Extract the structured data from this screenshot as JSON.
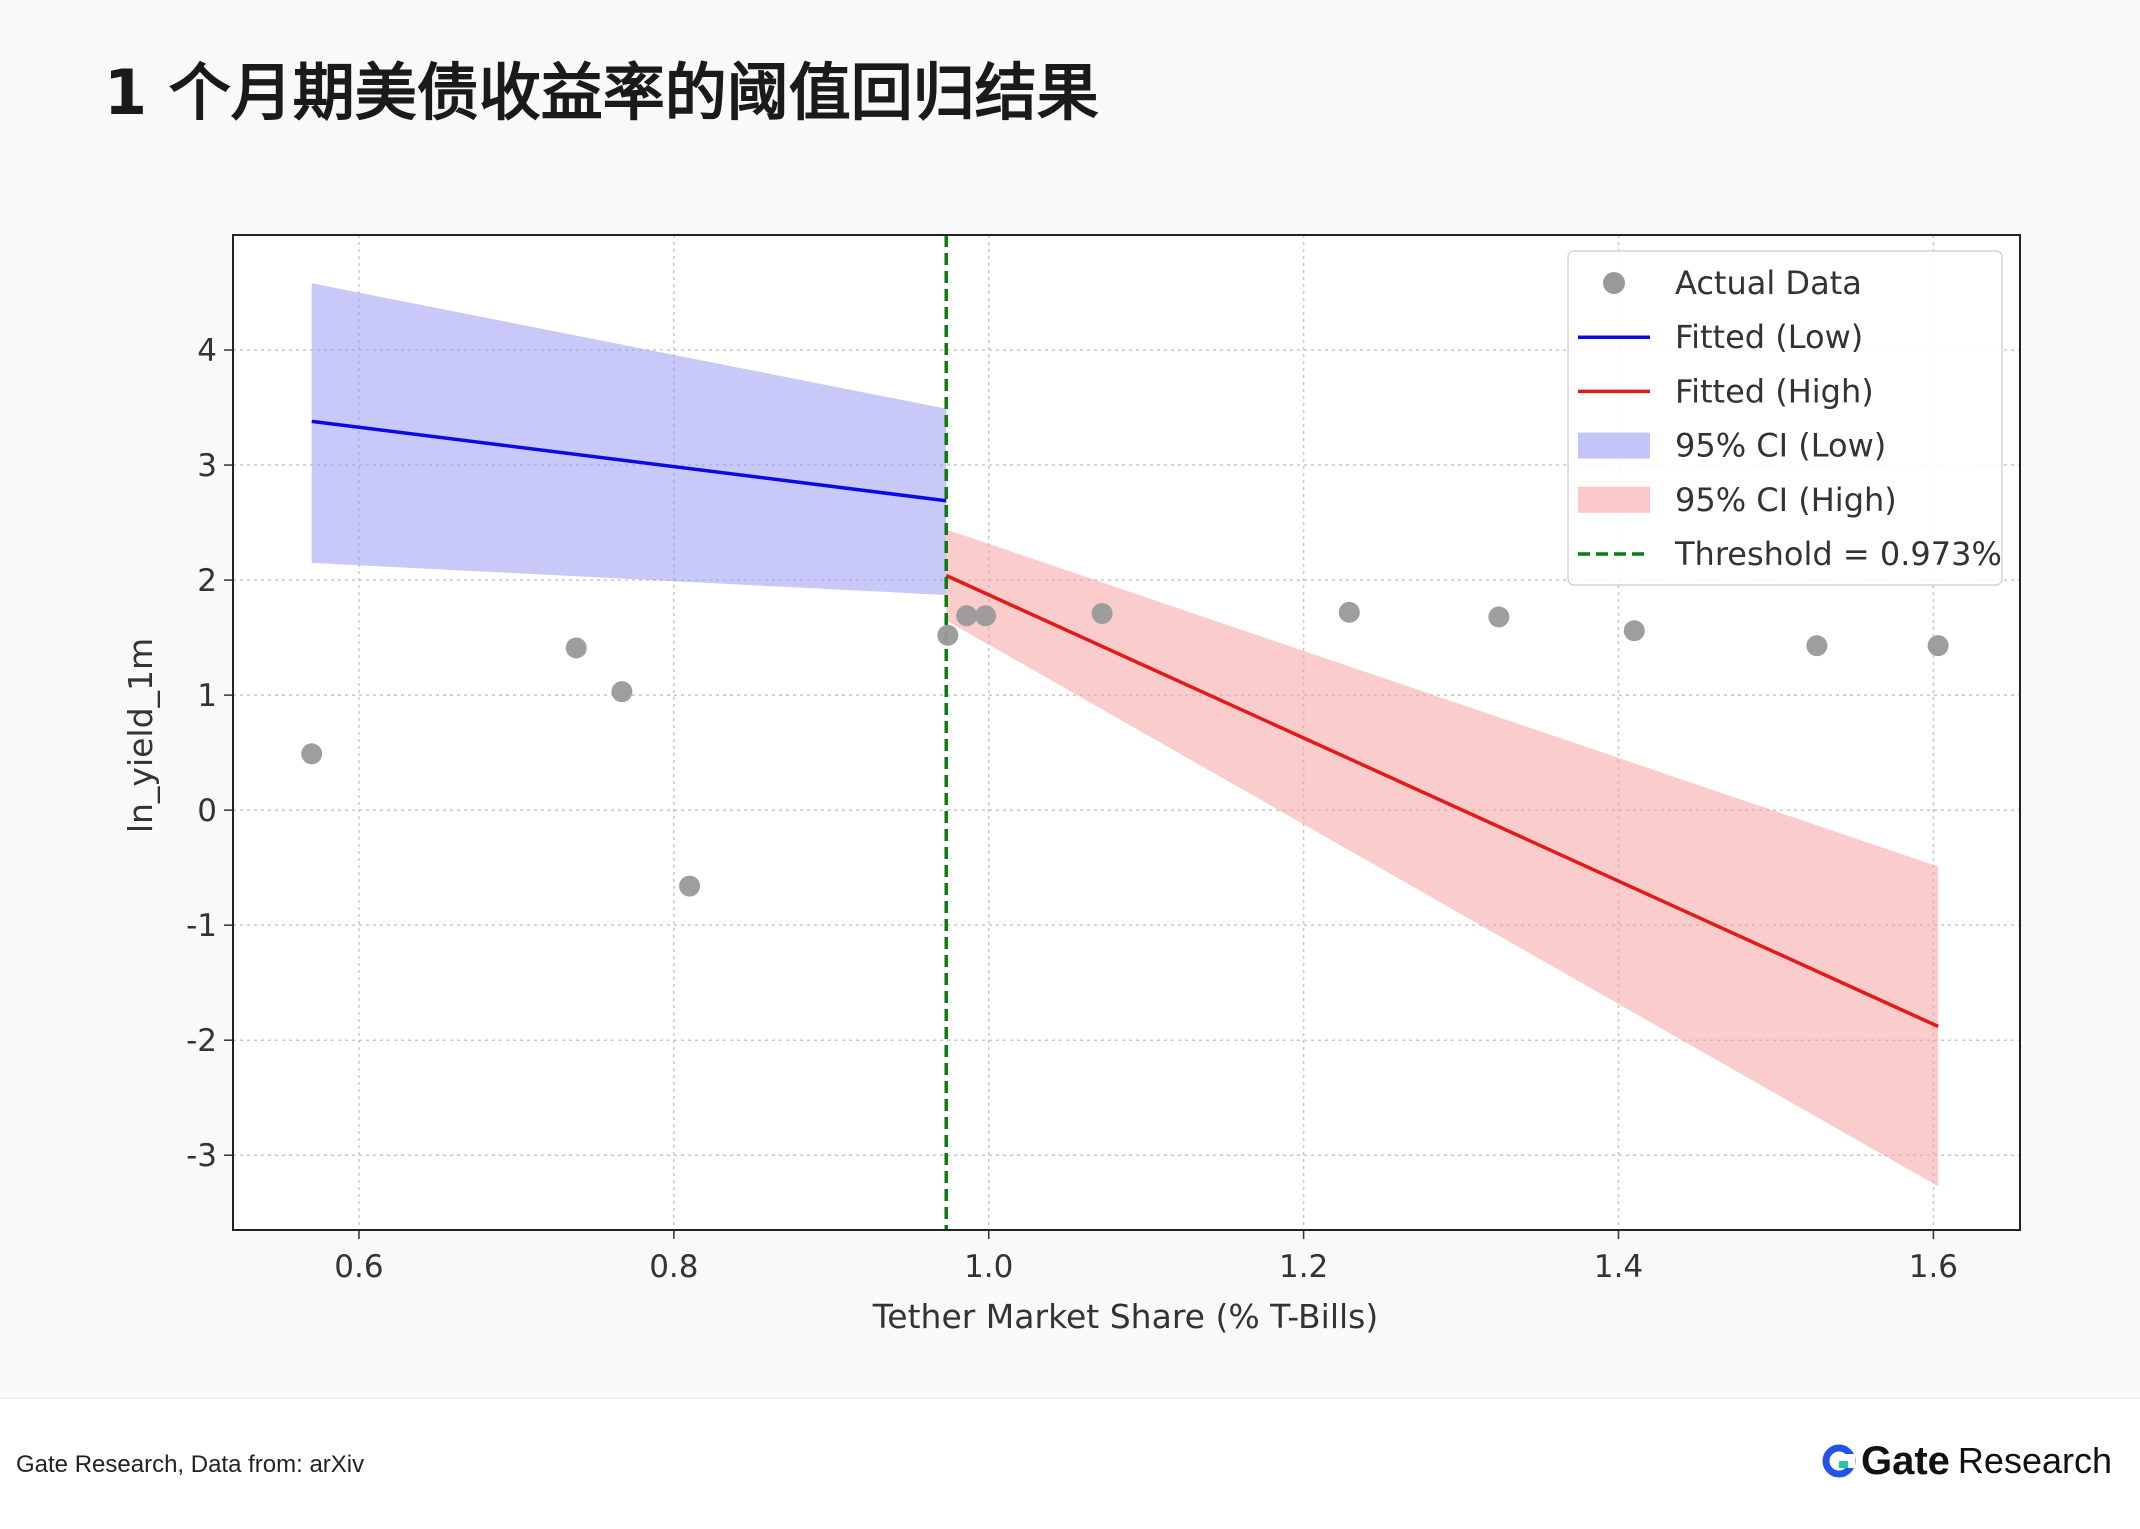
{
  "page": {
    "title": "1 个月期美债收益率的阈值回归结果",
    "source": "Gate Research, Data from: arXiv",
    "brand": {
      "word": "Gate",
      "sub": "Research",
      "icon": "gate-logo-icon",
      "accent": "#2354e6"
    }
  },
  "chart_data": {
    "type": "scatter",
    "title": "",
    "xlabel": "Tether Market Share (% T-Bills)",
    "ylabel": "ln_yield_1m",
    "xlim": [
      0.52,
      1.655
    ],
    "ylim": [
      -3.65,
      5.0
    ],
    "xticks": [
      0.6,
      0.8,
      1.0,
      1.2,
      1.4,
      1.6
    ],
    "xtick_labels": [
      "0.6",
      "0.8",
      "1.0",
      "1.2",
      "1.4",
      "1.6"
    ],
    "yticks": [
      4,
      3,
      2,
      1,
      0,
      -1,
      -2,
      -3
    ],
    "ytick_labels": [
      "4",
      "3",
      "2",
      "1",
      "0",
      "-1",
      "-2",
      "-3"
    ],
    "grid": true,
    "legend_position": "top-right",
    "threshold": 0.973,
    "actual_data": {
      "name": "Actual Data",
      "color": "#999999",
      "x": [
        0.57,
        0.738,
        0.767,
        0.81,
        0.974,
        0.986,
        0.998,
        1.072,
        1.229,
        1.324,
        1.41,
        1.526,
        1.603
      ],
      "y": [
        0.49,
        1.41,
        1.03,
        -0.66,
        1.52,
        1.69,
        1.69,
        1.71,
        1.72,
        1.68,
        1.56,
        1.43,
        1.43
      ]
    },
    "fitted_low": {
      "name": "Fitted (Low)",
      "color": "#0a0ae6",
      "x": [
        0.57,
        0.973
      ],
      "y": [
        3.38,
        2.69
      ]
    },
    "fitted_high": {
      "name": "Fitted (High)",
      "color": "#e31a1a",
      "x": [
        0.973,
        1.603
      ],
      "y": [
        2.04,
        -1.88
      ]
    },
    "ci_low": {
      "name": "95% CI (Low)",
      "color": "#9d9cf4",
      "x": [
        0.57,
        0.973
      ],
      "upper": [
        4.58,
        3.49
      ],
      "lower": [
        2.15,
        1.87
      ]
    },
    "ci_high": {
      "name": "95% CI (High)",
      "color": "#f6a3a3",
      "x": [
        0.973,
        1.603
      ],
      "upper": [
        2.44,
        -0.49
      ],
      "lower": [
        1.65,
        -3.27
      ]
    },
    "threshold_line": {
      "name": "Threshold = 0.973%",
      "color": "#0a7d0a"
    },
    "legend": [
      "Actual Data",
      "Fitted (Low)",
      "Fitted (High)",
      "95% CI (Low)",
      "95% CI (High)",
      "Threshold = 0.973%"
    ]
  }
}
